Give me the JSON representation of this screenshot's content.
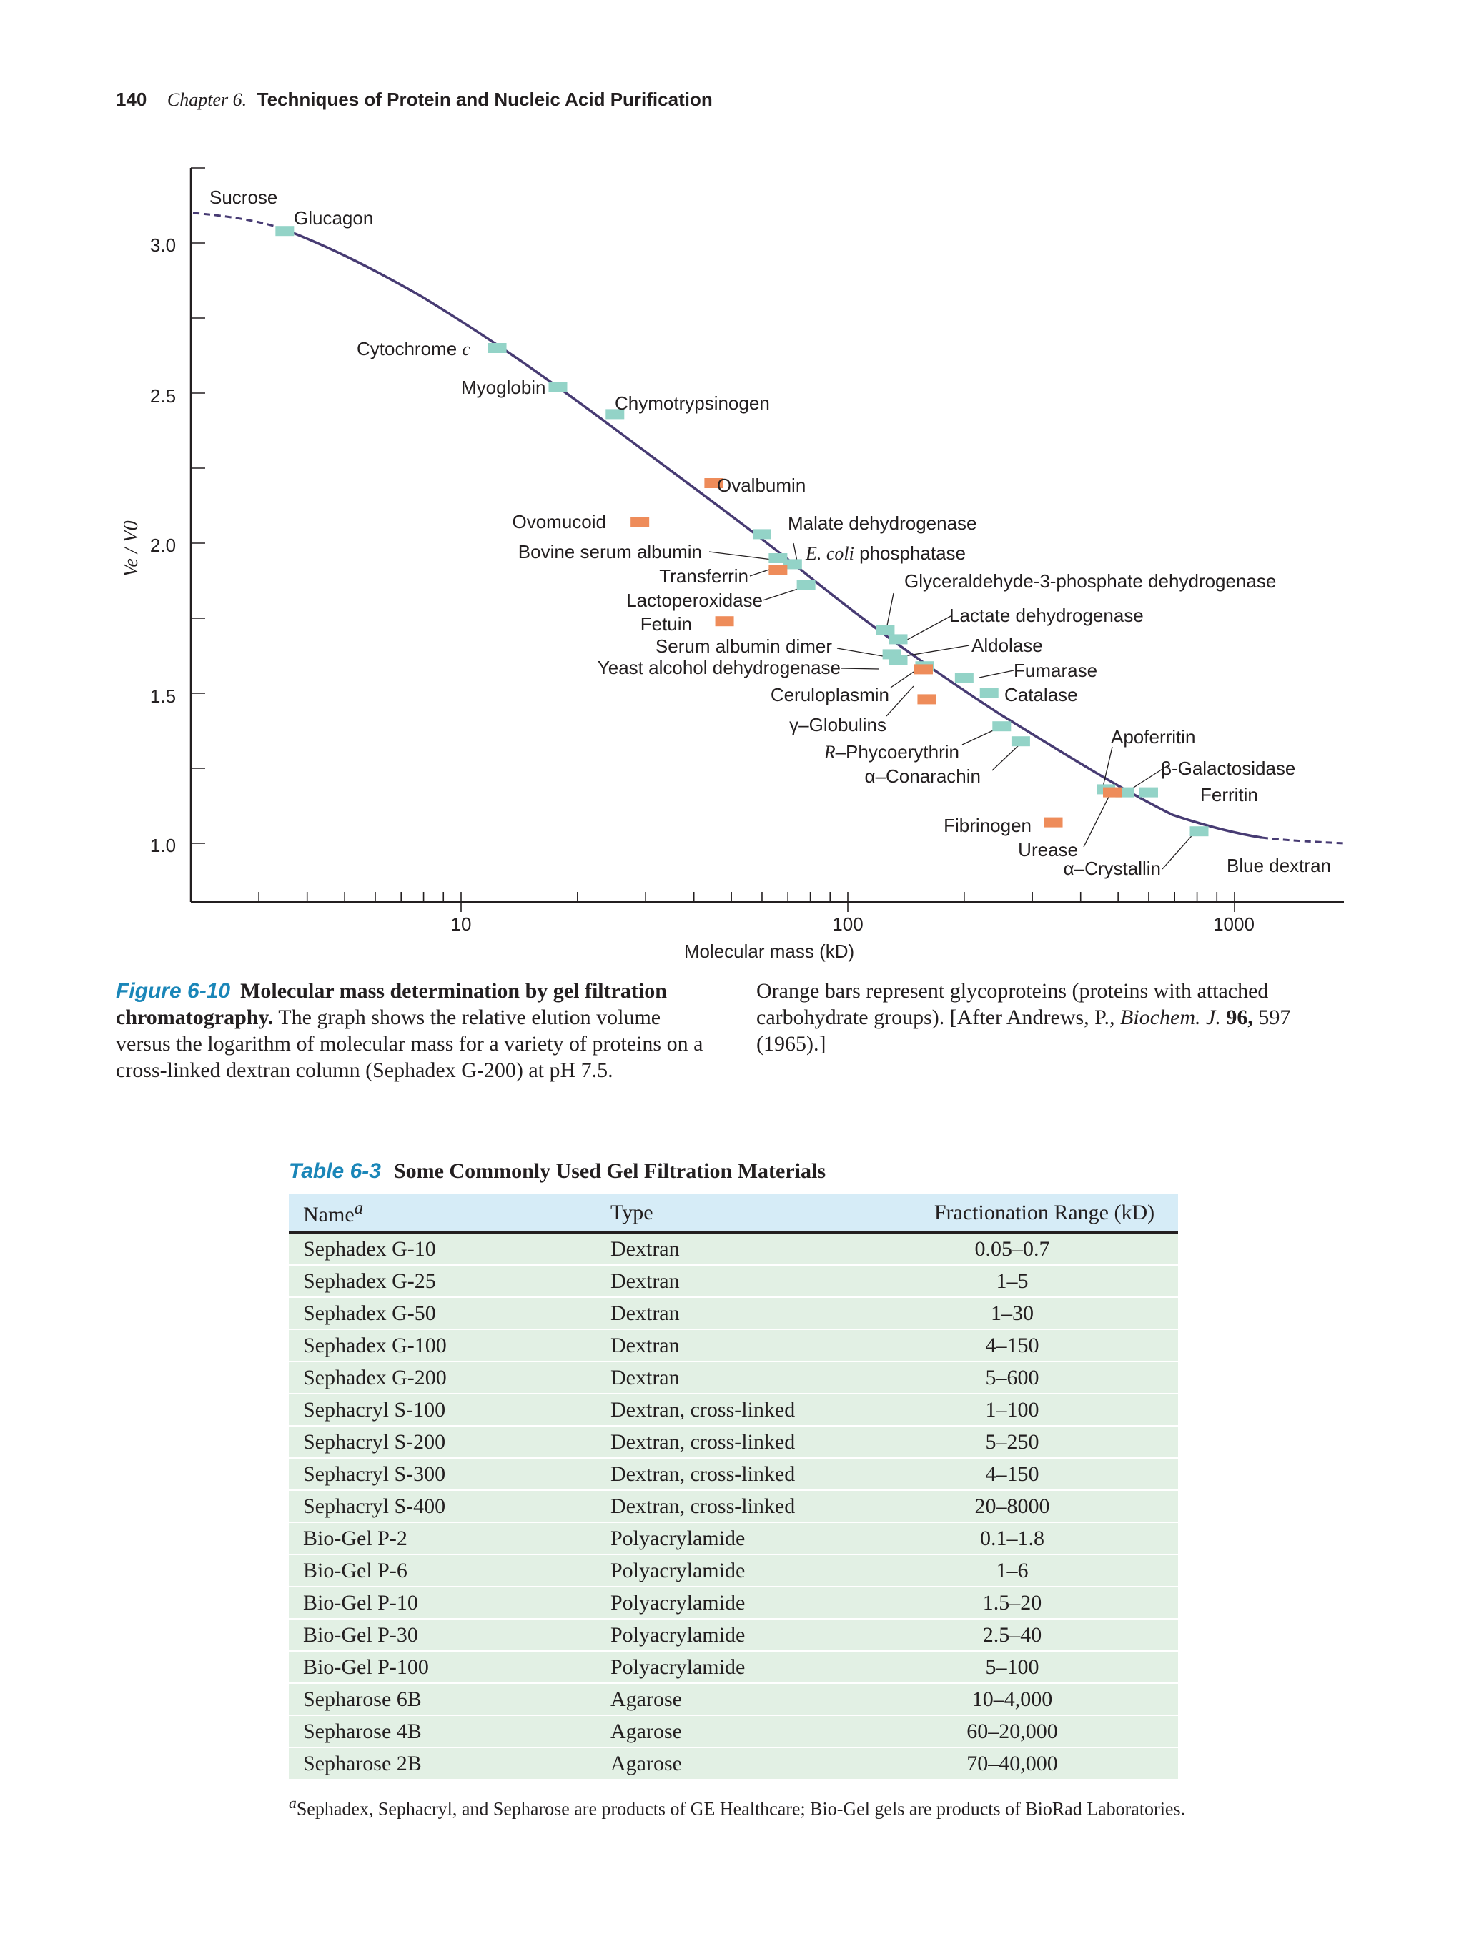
{
  "header": {
    "page_number": "140",
    "chapter": "Chapter 6.",
    "chapter_title": "Techniques of Protein and Nucleic Acid Purification"
  },
  "figure": {
    "y_axis_label": "Ve / V0",
    "x_axis_label": "Molecular mass (kD)",
    "y_ticks": [
      "3.0",
      "2.5",
      "2.0",
      "1.5",
      "1.0"
    ],
    "x_ticks": [
      "10",
      "100",
      "1000"
    ],
    "labels": {
      "sucrose": "Sucrose",
      "glucagon": "Glucagon",
      "cytochrome": "Cytochrome",
      "cytochrome_c": "c",
      "myoglobin": "Myoglobin",
      "chymotrypsinogen": "Chymotrypsinogen",
      "ovalbumin": "Ovalbumin",
      "ovomucoid": "Ovomucoid",
      "malate": "Malate dehydrogenase",
      "bsa": "Bovine serum albumin",
      "ecoli_italic": "E. coli",
      "ecoli_rest": "phosphatase",
      "transferrin": "Transferrin",
      "gapdh": "Glyceraldehyde-3-phosphate dehydrogenase",
      "lactoperoxidase": "Lactoperoxidase",
      "ldh": "Lactate dehydrogenase",
      "fetuin": "Fetuin",
      "sa_dimer": "Serum albumin dimer",
      "aldolase": "Aldolase",
      "yadh": "Yeast alcohol dehydrogenase",
      "fumarase": "Fumarase",
      "ceruloplasmin": "Ceruloplasmin",
      "catalase": "Catalase",
      "globulins": "γ–Globulins",
      "apoferritin": "Apoferritin",
      "phyco_italic": "R",
      "phyco_rest": "–Phycoerythrin",
      "bgal": "β-Galactosidase",
      "conarachin": "α–Conarachin",
      "ferritin": "Ferritin",
      "fibrinogen": "Fibrinogen",
      "urease": "Urease",
      "crystallin": "α–Crystallin",
      "blue_dextran": "Blue dextran"
    }
  },
  "chart_data": {
    "type": "scatter",
    "title": "",
    "xlabel": "Molecular mass (kD)",
    "ylabel": "Ve / V0",
    "x_scale": "log",
    "xlim": [
      2,
      2000
    ],
    "ylim": [
      0.8,
      3.25
    ],
    "colors": {
      "protein": "#93d3c7",
      "glycoprotein": "#ee8c5a",
      "curve": "#473b73"
    },
    "series": [
      {
        "name": "Proteins",
        "points": [
          {
            "label": "Glucagon",
            "x": 3.5,
            "y": 3.04
          },
          {
            "label": "Cytochrome c",
            "x": 12.4,
            "y": 2.65
          },
          {
            "label": "Myoglobin",
            "x": 17.8,
            "y": 2.52
          },
          {
            "label": "Chymotrypsinogen",
            "x": 25,
            "y": 2.43
          },
          {
            "label": "Malate dehydrogenase",
            "x": 60,
            "y": 2.03
          },
          {
            "label": "Bovine serum albumin",
            "x": 66,
            "y": 1.95
          },
          {
            "label": "E. coli phosphatase",
            "x": 72,
            "y": 1.93
          },
          {
            "label": "Lactoperoxidase",
            "x": 78,
            "y": 1.86
          },
          {
            "label": "Glyceraldehyde-3-phosphate dehydrogenase",
            "x": 125,
            "y": 1.71
          },
          {
            "label": "Lactate dehydrogenase",
            "x": 135,
            "y": 1.68
          },
          {
            "label": "Serum albumin dimer",
            "x": 130,
            "y": 1.63
          },
          {
            "label": "Yeast alcohol dehydrogenase",
            "x": 135,
            "y": 1.61
          },
          {
            "label": "Aldolase",
            "x": 158,
            "y": 1.59
          },
          {
            "label": "Fumarase",
            "x": 200,
            "y": 1.55
          },
          {
            "label": "Catalase",
            "x": 232,
            "y": 1.5
          },
          {
            "label": "R-Phycoerythrin",
            "x": 250,
            "y": 1.39
          },
          {
            "label": "α-Conarachin",
            "x": 280,
            "y": 1.34
          },
          {
            "label": "Apoferritin",
            "x": 465,
            "y": 1.18
          },
          {
            "label": "β-Galactosidase",
            "x": 520,
            "y": 1.17
          },
          {
            "label": "Ferritin",
            "x": 600,
            "y": 1.17
          },
          {
            "label": "α-Crystallin",
            "x": 810,
            "y": 1.04
          }
        ]
      },
      {
        "name": "Glycoproteins",
        "points": [
          {
            "label": "Ovalbumin",
            "x": 45,
            "y": 2.2
          },
          {
            "label": "Ovomucoid",
            "x": 29,
            "y": 2.07
          },
          {
            "label": "Transferrin",
            "x": 66,
            "y": 1.91
          },
          {
            "label": "Fetuin",
            "x": 48,
            "y": 1.74
          },
          {
            "label": "Ceruloplasmin",
            "x": 160,
            "y": 1.48
          },
          {
            "label": "γ-Globulins",
            "x": 157,
            "y": 1.58
          },
          {
            "label": "Fibrinogen",
            "x": 340,
            "y": 1.07
          },
          {
            "label": "Urease",
            "x": 483,
            "y": 1.17
          }
        ]
      }
    ]
  },
  "caption": {
    "figure_label": "Figure 6-10",
    "bold_title": "Molecular mass determination by gel filtration chromatography.",
    "text": "The graph shows the relative elution volume versus the logarithm of molecular mass for a variety of proteins on a cross-linked dextran column (Sephadex G-200) at pH 7.5.",
    "right_text_1": "Orange bars represent glycoproteins (proteins with attached carbohydrate groups). [After Andrews, P.,",
    "right_journal": "Biochem. J.",
    "right_volume": "96,",
    "right_text_2": "597 (1965).]"
  },
  "table": {
    "label": "Table 6-3",
    "title": "Some Commonly Used Gel Filtration Materials",
    "headers": {
      "name": "Name",
      "name_sup": "a",
      "type": "Type",
      "range": "Fractionation Range (kD)"
    },
    "rows": [
      {
        "name": "Sephadex G-10",
        "type": "Dextran",
        "range": "0.05–0.7"
      },
      {
        "name": "Sephadex G-25",
        "type": "Dextran",
        "range": "1–5"
      },
      {
        "name": "Sephadex G-50",
        "type": "Dextran",
        "range": "1–30"
      },
      {
        "name": "Sephadex G-100",
        "type": "Dextran",
        "range": "4–150"
      },
      {
        "name": "Sephadex G-200",
        "type": "Dextran",
        "range": "5–600"
      },
      {
        "name": "Sephacryl S-100",
        "type": "Dextran, cross-linked",
        "range": "1–100"
      },
      {
        "name": "Sephacryl S-200",
        "type": "Dextran, cross-linked",
        "range": "5–250"
      },
      {
        "name": "Sephacryl S-300",
        "type": "Dextran, cross-linked",
        "range": "4–150"
      },
      {
        "name": "Sephacryl S-400",
        "type": "Dextran, cross-linked",
        "range": "20–8000"
      },
      {
        "name": "Bio-Gel P-2",
        "type": "Polyacrylamide",
        "range": "0.1–1.8"
      },
      {
        "name": "Bio-Gel P-6",
        "type": "Polyacrylamide",
        "range": "1–6"
      },
      {
        "name": "Bio-Gel P-10",
        "type": "Polyacrylamide",
        "range": "1.5–20"
      },
      {
        "name": "Bio-Gel P-30",
        "type": "Polyacrylamide",
        "range": "2.5–40"
      },
      {
        "name": "Bio-Gel P-100",
        "type": "Polyacrylamide",
        "range": "5–100"
      },
      {
        "name": "Sepharose 6B",
        "type": "Agarose",
        "range": "10–4,000"
      },
      {
        "name": "Sepharose 4B",
        "type": "Agarose",
        "range": "60–20,000"
      },
      {
        "name": "Sepharose 2B",
        "type": "Agarose",
        "range": "70–40,000"
      }
    ],
    "footnote_sup": "a",
    "footnote": "Sephadex, Sephacryl, and Sepharose are products of GE Healthcare; Bio-Gel gels are products of BioRad Laboratories."
  }
}
